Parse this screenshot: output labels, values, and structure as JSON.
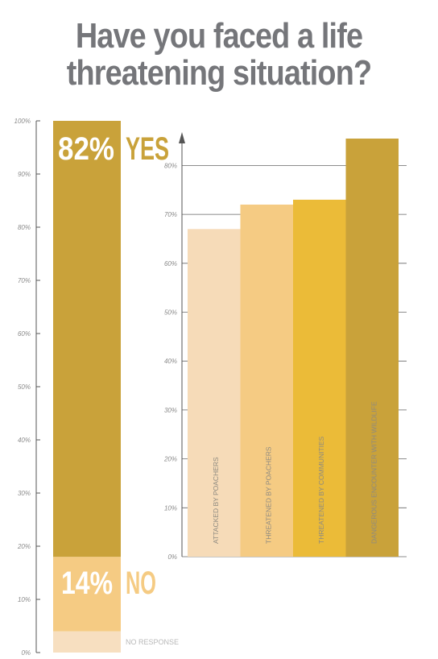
{
  "title": {
    "line1": "Have you faced a life",
    "line2": "threatening situation?"
  },
  "colors": {
    "title": "#75767a",
    "yes": "#c9a23a",
    "no": "#f5cb83",
    "no_response": "#f7dfc0",
    "bar_light": "#f6dbb8",
    "bar_mid": "#f5cb83",
    "bar_yellow": "#ebbb38",
    "bar_dark": "#c9a23a",
    "axis": "#555555"
  },
  "chart_data": [
    {
      "type": "bar",
      "stacked": true,
      "ylim": [
        0,
        100
      ],
      "yticks": [
        "0%",
        "10%",
        "20%",
        "30%",
        "40%",
        "50%",
        "60%",
        "70%",
        "80%",
        "90%",
        "100%"
      ],
      "segments": [
        {
          "name": "NO RESPONSE",
          "value": 4
        },
        {
          "name": "NO",
          "value": 14,
          "display": "14%"
        },
        {
          "name": "YES",
          "value": 82,
          "display": "82%"
        }
      ]
    },
    {
      "type": "bar",
      "ylim": [
        0,
        90
      ],
      "yticks": [
        "0%",
        "10%",
        "20%",
        "30%",
        "40%",
        "50%",
        "60%",
        "70%",
        "80%"
      ],
      "categories": [
        "ATTACKED BY POACHERS",
        "THREATENED BY POACHERS",
        "THREATENED BY COMMUNITIES",
        "DANGEROUS ENCOUNTER WITH WILDLIFE"
      ],
      "values": [
        67,
        72,
        73,
        85.5
      ],
      "grid": true
    }
  ]
}
